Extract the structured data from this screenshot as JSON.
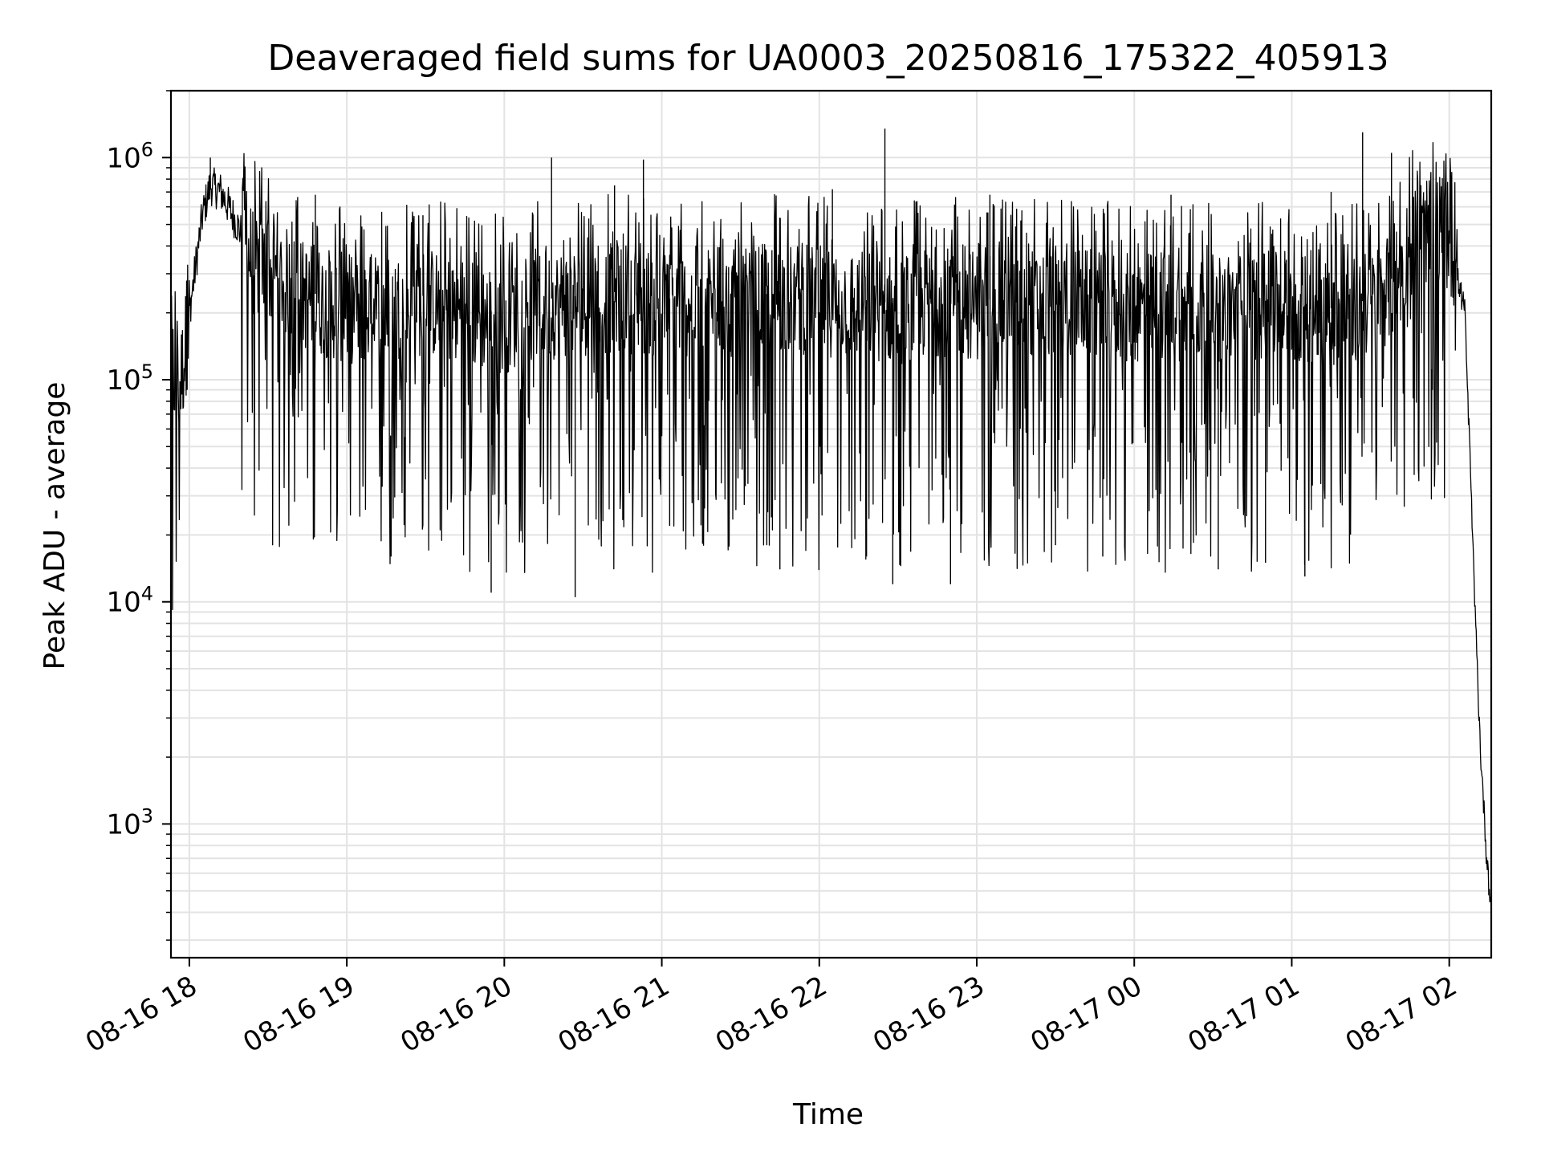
{
  "chart_data": {
    "type": "line",
    "title": "Deaveraged field sums for UA0003_20250816_175322_405913",
    "xlabel": "Time",
    "ylabel": "Peak ADU - average",
    "yscale": "log",
    "xlim": [
      "2025-08-16 17:53",
      "2025-08-17 02:16"
    ],
    "ylim": [
      250,
      2000000
    ],
    "grid": true,
    "line_color": "#000000",
    "x_ticks": [
      {
        "t": "2025-08-16 18:00",
        "label": "08-16 18"
      },
      {
        "t": "2025-08-16 19:00",
        "label": "08-16 19"
      },
      {
        "t": "2025-08-16 20:00",
        "label": "08-16 20"
      },
      {
        "t": "2025-08-16 21:00",
        "label": "08-16 21"
      },
      {
        "t": "2025-08-16 22:00",
        "label": "08-16 22"
      },
      {
        "t": "2025-08-16 23:00",
        "label": "08-16 23"
      },
      {
        "t": "2025-08-17 00:00",
        "label": "08-17 00"
      },
      {
        "t": "2025-08-17 01:00",
        "label": "08-17 01"
      },
      {
        "t": "2025-08-17 02:00",
        "label": "08-17 02"
      }
    ],
    "y_ticks": [
      {
        "value": 1000,
        "base": "10",
        "exp": "3"
      },
      {
        "value": 10000,
        "base": "10",
        "exp": "4"
      },
      {
        "value": 100000,
        "base": "10",
        "exp": "5"
      },
      {
        "value": 1000000,
        "base": "10",
        "exp": "6"
      }
    ],
    "series": [
      {
        "x": [
          "2025-08-16 17:53",
          "2025-08-16 17:55",
          "2025-08-16 17:57",
          "2025-08-16 18:00",
          "2025-08-16 18:05",
          "2025-08-16 18:08",
          "2025-08-16 18:12",
          "2025-08-16 18:15",
          "2025-08-16 18:20",
          "2025-08-16 18:25",
          "2025-08-16 18:35",
          "2025-08-16 18:45",
          "2025-08-16 19:00",
          "2025-08-16 19:15",
          "2025-08-16 19:30",
          "2025-08-16 19:45",
          "2025-08-16 20:00",
          "2025-08-16 20:15",
          "2025-08-16 20:30",
          "2025-08-16 20:45",
          "2025-08-16 21:00",
          "2025-08-16 21:15",
          "2025-08-16 21:30",
          "2025-08-16 21:45",
          "2025-08-16 22:00",
          "2025-08-16 22:15",
          "2025-08-16 22:30",
          "2025-08-16 22:45",
          "2025-08-16 23:00",
          "2025-08-16 23:15",
          "2025-08-16 23:30",
          "2025-08-16 23:45",
          "2025-08-17 00:00",
          "2025-08-17 00:15",
          "2025-08-17 00:30",
          "2025-08-17 00:45",
          "2025-08-17 01:00",
          "2025-08-17 01:15",
          "2025-08-17 01:30",
          "2025-08-17 01:40",
          "2025-08-17 01:45",
          "2025-08-17 01:50",
          "2025-08-17 01:55",
          "2025-08-17 02:00",
          "2025-08-17 02:03",
          "2025-08-17 02:06",
          "2025-08-17 02:08",
          "2025-08-17 02:10",
          "2025-08-17 02:12",
          "2025-08-17 02:14",
          "2025-08-17 02:16"
        ],
        "y": [
          150000,
          90000,
          110000,
          200000,
          550000,
          750000,
          700000,
          600000,
          450000,
          350000,
          300000,
          250000,
          220000,
          220000,
          240000,
          210000,
          200000,
          230000,
          240000,
          250000,
          230000,
          240000,
          230000,
          250000,
          240000,
          230000,
          220000,
          240000,
          230000,
          230000,
          240000,
          230000,
          220000,
          230000,
          220000,
          230000,
          220000,
          210000,
          230000,
          300000,
          420000,
          500000,
          520000,
          480000,
          300000,
          200000,
          40000,
          8000,
          2000,
          800,
          400
        ]
      },
      {
        "type": "spikes",
        "x": [
          "2025-08-16 18:08",
          "2025-08-16 18:48",
          "2025-08-16 19:29",
          "2025-08-16 19:55",
          "2025-08-16 20:18",
          "2025-08-16 20:27",
          "2025-08-16 20:42",
          "2025-08-16 20:53",
          "2025-08-16 21:03",
          "2025-08-16 21:40",
          "2025-08-16 21:45",
          "2025-08-16 22:05",
          "2025-08-16 22:18",
          "2025-08-16 22:25",
          "2025-08-16 22:28",
          "2025-08-16 22:50",
          "2025-08-16 23:05",
          "2025-08-16 23:30",
          "2025-08-16 23:48",
          "2025-08-17 00:14",
          "2025-08-17 00:32",
          "2025-08-17 00:50",
          "2025-08-17 01:05",
          "2025-08-17 01:15",
          "2025-08-17 01:27",
          "2025-08-17 01:38"
        ],
        "y": [
          1000000,
          680000,
          550000,
          11000,
          1000000,
          10500,
          750000,
          980000,
          22000,
          18000,
          14000,
          720000,
          16000,
          1350000,
          12000,
          12000,
          680000,
          18000,
          16000,
          680000,
          14000,
          15000,
          13000,
          700000,
          1300000,
          1050000
        ]
      }
    ]
  }
}
